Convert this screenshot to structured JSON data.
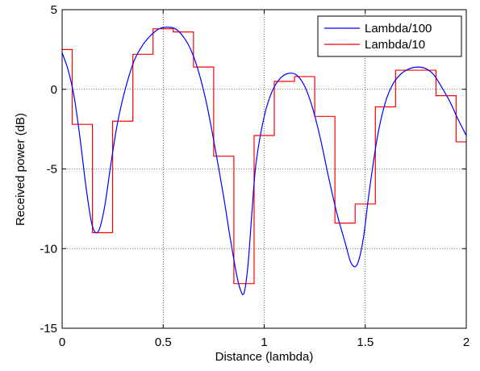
{
  "chart_data": {
    "type": "line",
    "title": "",
    "xlabel": "Distance (lambda)",
    "ylabel": "Received power (dB)",
    "xlim": [
      0,
      2
    ],
    "ylim": [
      -15,
      5
    ],
    "xticks": [
      0,
      0.5,
      1,
      1.5,
      2
    ],
    "xtick_labels": [
      "0",
      "0.5",
      "1",
      "1.5",
      "2"
    ],
    "yticks": [
      -15,
      -10,
      -5,
      0,
      5
    ],
    "ytick_labels": [
      "-15",
      "-10",
      "-5",
      "0",
      "5"
    ],
    "grid": true,
    "legend_position": "top-right",
    "series": [
      {
        "name": "Lambda/100",
        "color": "#0000ff",
        "style": "smooth",
        "x": [
          0,
          0.03,
          0.06,
          0.09,
          0.12,
          0.15,
          0.18,
          0.21,
          0.24,
          0.27,
          0.3,
          0.33,
          0.36,
          0.4,
          0.44,
          0.48,
          0.52,
          0.56,
          0.6,
          0.64,
          0.68,
          0.72,
          0.76,
          0.8,
          0.83,
          0.86,
          0.88,
          0.9,
          0.92,
          0.94,
          0.96,
          1.0,
          1.04,
          1.08,
          1.12,
          1.16,
          1.2,
          1.24,
          1.28,
          1.32,
          1.36,
          1.4,
          1.43,
          1.46,
          1.49,
          1.52,
          1.56,
          1.6,
          1.64,
          1.68,
          1.72,
          1.76,
          1.8,
          1.84,
          1.88,
          1.92,
          1.96,
          2.0
        ],
        "y": [
          2.3,
          1.2,
          -0.5,
          -3.2,
          -6.3,
          -8.6,
          -8.9,
          -7.4,
          -4.8,
          -2.4,
          -0.6,
          0.8,
          1.9,
          2.8,
          3.4,
          3.8,
          3.9,
          3.8,
          3.3,
          2.4,
          0.9,
          -1.2,
          -3.9,
          -6.8,
          -9.2,
          -11.4,
          -12.5,
          -12.8,
          -11.0,
          -7.6,
          -4.6,
          -1.7,
          -0.1,
          0.7,
          1.0,
          0.9,
          0.2,
          -1.2,
          -3.2,
          -5.6,
          -7.8,
          -9.6,
          -10.9,
          -11.0,
          -9.4,
          -6.4,
          -3.0,
          -0.8,
          0.4,
          1.0,
          1.3,
          1.4,
          1.3,
          0.9,
          0.1,
          -0.8,
          -1.9,
          -2.9
        ]
      },
      {
        "name": "Lambda/10",
        "color": "#ff0000",
        "style": "step",
        "x": [
          0,
          0.05,
          0.1,
          0.15,
          0.2,
          0.25,
          0.3,
          0.35,
          0.4,
          0.45,
          0.5,
          0.55,
          0.6,
          0.65,
          0.7,
          0.75,
          0.8,
          0.85,
          0.9,
          0.95,
          1.0,
          1.05,
          1.1,
          1.15,
          1.2,
          1.25,
          1.3,
          1.35,
          1.4,
          1.45,
          1.5,
          1.55,
          1.6,
          1.65,
          1.7,
          1.75,
          1.8,
          1.85,
          1.9,
          1.95
        ],
        "y": [
          2.5,
          -2.2,
          -2.2,
          -9.0,
          -9.0,
          -2.0,
          -2.0,
          2.2,
          2.2,
          3.8,
          3.8,
          3.6,
          3.6,
          1.4,
          1.4,
          -4.2,
          -4.2,
          -12.2,
          -12.2,
          -2.9,
          -2.9,
          0.5,
          0.5,
          0.8,
          0.8,
          -1.7,
          -1.7,
          -8.4,
          -8.4,
          -7.2,
          -7.2,
          -1.1,
          -1.1,
          1.2,
          1.2,
          1.2,
          1.2,
          -0.4,
          -0.4,
          -3.3
        ],
        "x_end": 2.0
      }
    ]
  }
}
